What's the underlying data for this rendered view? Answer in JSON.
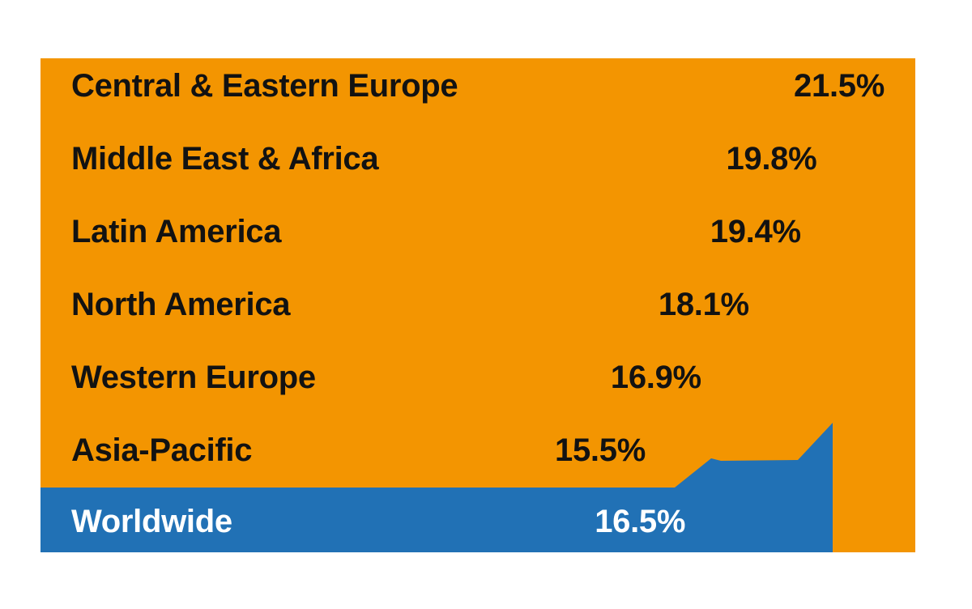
{
  "chart_data": {
    "type": "bar",
    "orientation": "horizontal",
    "title": "",
    "xlabel": "",
    "ylabel": "",
    "value_format": "percent",
    "rows": [
      {
        "label": "Central & Eastern Europe",
        "value": 21.5,
        "display": "21.5%",
        "highlight": false
      },
      {
        "label": "Middle East & Africa",
        "value": 19.8,
        "display": "19.8%",
        "highlight": false
      },
      {
        "label": "Latin America",
        "value": 19.4,
        "display": "19.4%",
        "highlight": false
      },
      {
        "label": "North America",
        "value": 18.1,
        "display": "18.1%",
        "highlight": false
      },
      {
        "label": "Western Europe",
        "value": 16.9,
        "display": "16.9%",
        "highlight": false
      },
      {
        "label": "Asia-Pacific",
        "value": 15.5,
        "display": "15.5%",
        "highlight": false
      },
      {
        "label": "Worldwide",
        "value": 16.5,
        "display": "16.5%",
        "highlight": true
      }
    ],
    "colors": {
      "panel_background": "#F39501",
      "highlight_area": "#2171B5",
      "label_text": "#121212",
      "highlight_text": "#FFFFFF"
    },
    "layout_hints": {
      "bars_invisible": true,
      "value_labels_positioned_proportionally_to_value": true,
      "grid": "off",
      "legend": "none",
      "highlight_row_rendered_as_rising_area_shape": true
    }
  }
}
